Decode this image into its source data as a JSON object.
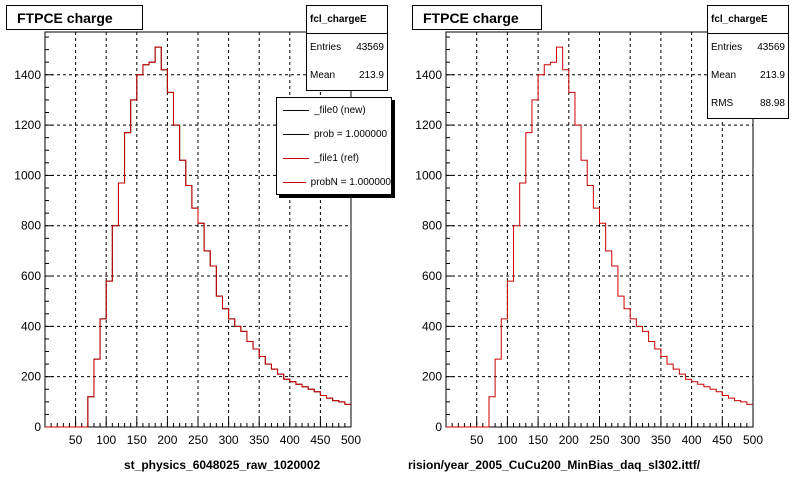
{
  "colors": {
    "new": "#000000",
    "ref": "#cc0000",
    "grid": "#000000"
  },
  "legend": {
    "items": [
      {
        "label": "_file0 (new)",
        "color": "#000000"
      },
      {
        "label": "prob = 1.000000",
        "color": "#000000"
      },
      {
        "label": "_file1 (ref)",
        "color": "#cc0000"
      },
      {
        "label": "probN = 1.000000",
        "color": "#cc0000"
      }
    ]
  },
  "panels": [
    {
      "title": "FTPCE charge",
      "stats": {
        "name": "fcl_chargeE",
        "rows": [
          {
            "k": "Entries",
            "v": "43569"
          },
          {
            "k": "Mean",
            "v": "213.9"
          }
        ]
      },
      "xlabel": "st_physics_6048025_raw_1020002"
    },
    {
      "title": "FTPCE charge",
      "stats": {
        "name": "fcl_chargeE",
        "rows": [
          {
            "k": "Entries",
            "v": "43569"
          },
          {
            "k": "Mean",
            "v": "213.9"
          },
          {
            "k": "RMS",
            "v": "88.98"
          }
        ]
      },
      "xlabel": "rision/year_2005_CuCu200_MinBias_daq_sl302.ittf/"
    }
  ],
  "chart_data": [
    {
      "type": "histogram",
      "title": "FTPCE charge",
      "xlabel": "st_physics_6048025_raw_1020002",
      "xlim": [
        0,
        500
      ],
      "ylim": [
        0,
        1570
      ],
      "grid": true,
      "xticks": [
        50,
        100,
        150,
        200,
        250,
        300,
        350,
        400,
        450,
        500
      ],
      "yticks": [
        0,
        200,
        400,
        600,
        800,
        1000,
        1200,
        1400
      ],
      "bin_width": 10,
      "legend_position": "top-right",
      "series": [
        {
          "name": "_file0 (new)",
          "color": "#000000",
          "values": [
            0,
            0,
            0,
            0,
            0,
            0,
            0,
            120,
            270,
            430,
            580,
            800,
            970,
            1170,
            1300,
            1400,
            1440,
            1450,
            1510,
            1420,
            1330,
            1200,
            1060,
            960,
            870,
            810,
            700,
            640,
            520,
            470,
            430,
            400,
            380,
            340,
            310,
            280,
            250,
            230,
            210,
            190,
            180,
            170,
            160,
            150,
            140,
            125,
            115,
            105,
            100,
            90
          ]
        },
        {
          "name": "_file1 (ref)",
          "color": "#cc0000",
          "values": [
            0,
            0,
            0,
            0,
            0,
            0,
            0,
            120,
            270,
            430,
            580,
            800,
            970,
            1170,
            1300,
            1400,
            1440,
            1450,
            1510,
            1420,
            1330,
            1200,
            1060,
            960,
            870,
            810,
            700,
            640,
            520,
            470,
            430,
            400,
            380,
            340,
            310,
            280,
            250,
            230,
            210,
            190,
            180,
            170,
            160,
            150,
            140,
            125,
            115,
            105,
            100,
            90
          ]
        }
      ]
    },
    {
      "type": "histogram",
      "title": "FTPCE charge",
      "xlabel": "rision/year_2005_CuCu200_MinBias_daq_sl302.ittf/",
      "xlim": [
        0,
        500
      ],
      "ylim": [
        0,
        1570
      ],
      "grid": true,
      "xticks": [
        50,
        100,
        150,
        200,
        250,
        300,
        350,
        400,
        450,
        500
      ],
      "yticks": [
        0,
        200,
        400,
        600,
        800,
        1000,
        1200,
        1400
      ],
      "bin_width": 10,
      "series": [
        {
          "color": "#cc0000",
          "values": [
            0,
            0,
            0,
            0,
            0,
            0,
            0,
            120,
            270,
            430,
            580,
            800,
            970,
            1170,
            1300,
            1400,
            1440,
            1450,
            1510,
            1420,
            1330,
            1200,
            1060,
            960,
            870,
            810,
            700,
            640,
            520,
            470,
            430,
            400,
            380,
            340,
            310,
            280,
            250,
            230,
            210,
            190,
            180,
            170,
            160,
            150,
            140,
            125,
            115,
            105,
            100,
            90
          ]
        }
      ]
    }
  ]
}
